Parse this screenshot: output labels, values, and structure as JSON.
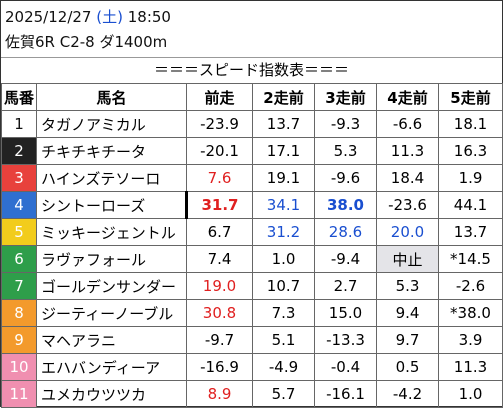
{
  "header": {
    "date": "2025/12/27",
    "weekday": "(土)",
    "time": "18:50",
    "race": "佐賀6R C2-8 ダ1400m"
  },
  "title": "＝＝＝スピード指数表＝＝＝",
  "table": {
    "columns": [
      "馬番",
      "馬名",
      "前走",
      "2走前",
      "3走前",
      "4走前",
      "5走前"
    ],
    "rows": [
      [
        "1",
        "タガノアミカル",
        "-23.9",
        "13.7",
        "-9.3",
        "-6.6",
        "18.1"
      ],
      [
        "2",
        "チキチキチータ",
        "-20.1",
        "17.1",
        "5.3",
        "11.3",
        "16.3"
      ],
      [
        "3",
        "ハインズテソーロ",
        "7.6",
        "19.1",
        "-9.6",
        "18.4",
        "1.9"
      ],
      [
        "4",
        "シントーローズ",
        "31.7",
        "34.1",
        "38.0",
        "-23.6",
        "44.1"
      ],
      [
        "5",
        "ミッキージェントル",
        "6.7",
        "31.2",
        "28.6",
        "20.0",
        "13.7"
      ],
      [
        "6",
        "ラヴァフォール",
        "7.4",
        "1.0",
        "-9.4",
        "中止",
        "*14.5"
      ],
      [
        "7",
        "ゴールデンサンダー",
        "19.0",
        "10.7",
        "2.7",
        "5.3",
        "-2.6"
      ],
      [
        "8",
        "ジーティーノーブル",
        "30.8",
        "7.3",
        "15.0",
        "9.4",
        "*38.0"
      ],
      [
        "9",
        "マヘアラニ",
        "-9.7",
        "5.1",
        "-13.3",
        "9.7",
        "3.9"
      ],
      [
        "10",
        "エハバンディーア",
        "-16.9",
        "-4.9",
        "-0.4",
        "0.5",
        "11.3"
      ],
      [
        "11",
        "ユメカウツツカ",
        "8.9",
        "5.7",
        "-16.1",
        "-4.2",
        "1.0"
      ]
    ]
  }
}
